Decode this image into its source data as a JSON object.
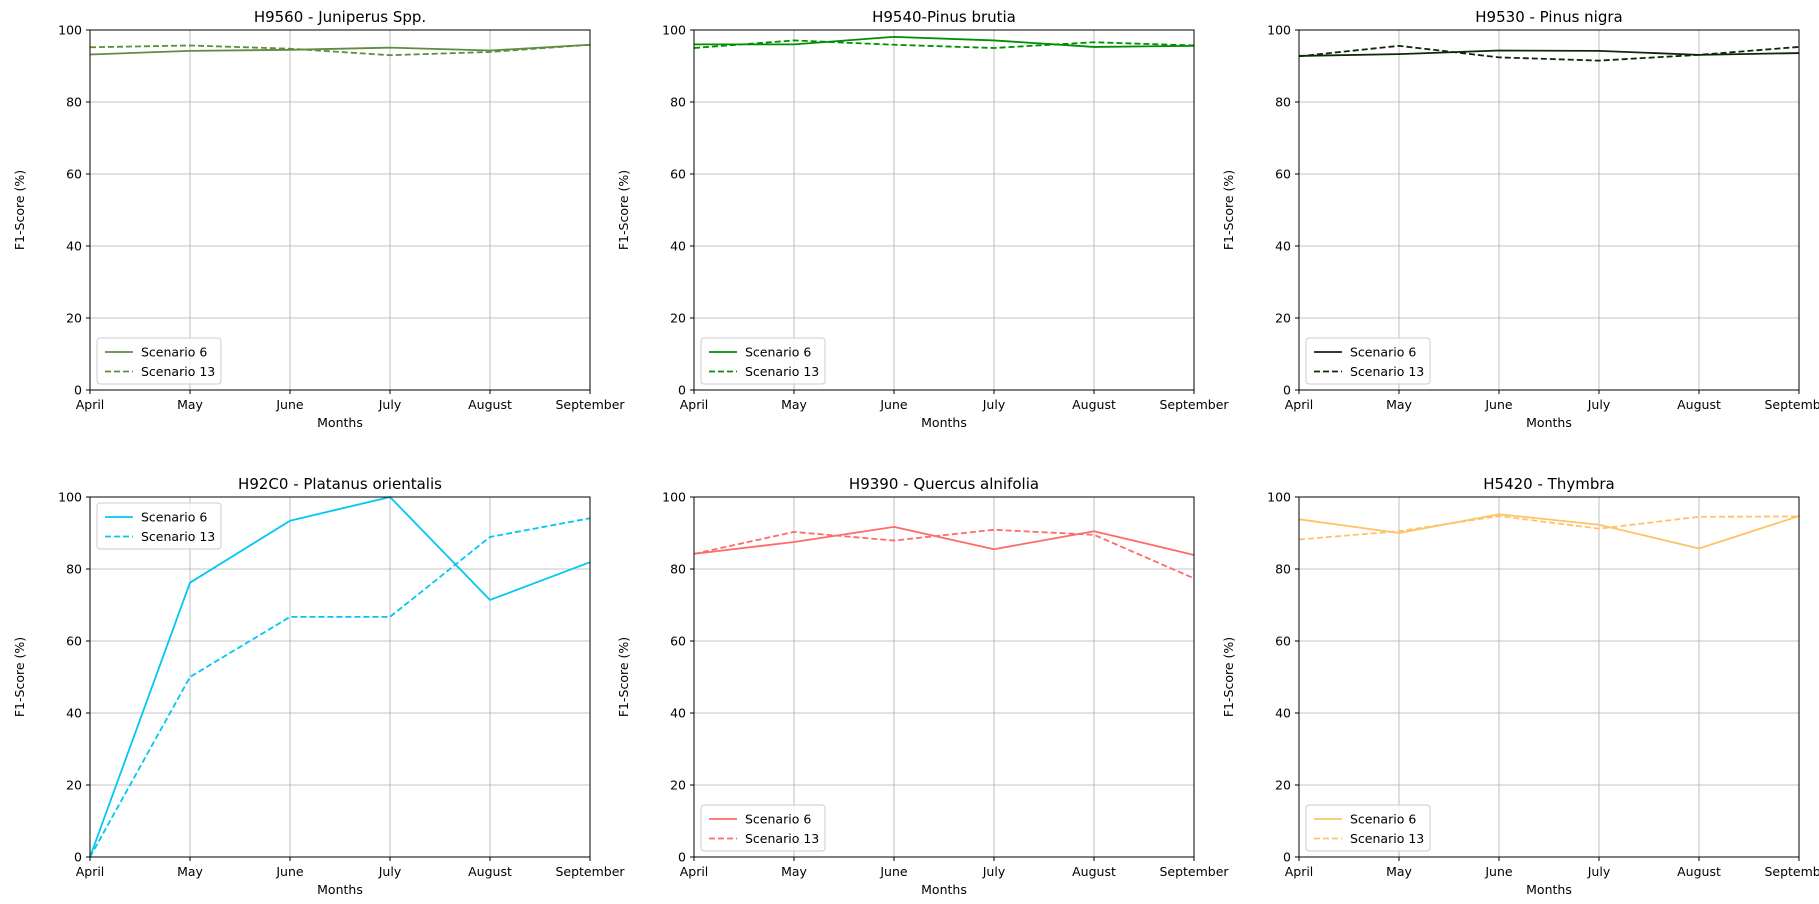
{
  "chart_data": [
    {
      "type": "line",
      "title": "H9560 - Juniperus Spp.",
      "xlabel": "Months",
      "ylabel": "F1-Score (%)",
      "categories": [
        "April",
        "May",
        "June",
        "July",
        "August",
        "September"
      ],
      "ylim": [
        0,
        100
      ],
      "yticks": [
        0,
        20,
        40,
        60,
        80,
        100
      ],
      "grid": true,
      "legend": "lower left",
      "color": "#5f8c3f",
      "series": [
        {
          "name": "Scenario 6",
          "style": "solid",
          "values": [
            93.2,
            94.2,
            94.5,
            95.1,
            94.3,
            95.9
          ]
        },
        {
          "name": "Scenario 13",
          "style": "dashed",
          "values": [
            95.2,
            95.7,
            94.8,
            93.0,
            93.9,
            95.9
          ]
        }
      ]
    },
    {
      "type": "line",
      "title": "H9540-Pinus brutia",
      "xlabel": "Months",
      "ylabel": "F1-Score (%)",
      "categories": [
        "April",
        "May",
        "June",
        "July",
        "August",
        "September"
      ],
      "ylim": [
        0,
        100
      ],
      "yticks": [
        0,
        20,
        40,
        60,
        80,
        100
      ],
      "grid": true,
      "legend": "lower left",
      "color": "#008f00",
      "series": [
        {
          "name": "Scenario 6",
          "style": "solid",
          "values": [
            96.0,
            96.0,
            98.1,
            97.1,
            95.3,
            95.6
          ]
        },
        {
          "name": "Scenario 13",
          "style": "dashed",
          "values": [
            95.0,
            97.1,
            95.9,
            95.0,
            96.6,
            95.7
          ]
        }
      ]
    },
    {
      "type": "line",
      "title": "H9530 - Pinus nigra",
      "xlabel": "Months",
      "ylabel": "F1-Score (%)",
      "categories": [
        "April",
        "May",
        "June",
        "July",
        "August",
        "September"
      ],
      "ylim": [
        0,
        100
      ],
      "yticks": [
        0,
        20,
        40,
        60,
        80,
        100
      ],
      "grid": true,
      "legend": "lower left",
      "color": "#0c2a06",
      "series": [
        {
          "name": "Scenario 6",
          "style": "solid",
          "values": [
            92.8,
            93.3,
            94.3,
            94.2,
            93.1,
            93.6
          ]
        },
        {
          "name": "Scenario 13",
          "style": "dashed",
          "values": [
            92.7,
            95.6,
            92.4,
            91.5,
            93.1,
            95.3
          ]
        }
      ]
    },
    {
      "type": "line",
      "title": "H92C0 - Platanus orientalis",
      "xlabel": "Months",
      "ylabel": "F1-Score (%)",
      "categories": [
        "April",
        "May",
        "June",
        "July",
        "August",
        "September"
      ],
      "ylim": [
        0,
        100
      ],
      "yticks": [
        0,
        20,
        40,
        60,
        80,
        100
      ],
      "grid": true,
      "legend": "upper left",
      "color": "#00c8f2",
      "series": [
        {
          "name": "Scenario 6",
          "style": "solid",
          "values": [
            0.0,
            76.2,
            93.4,
            100.0,
            71.4,
            81.9
          ]
        },
        {
          "name": "Scenario 13",
          "style": "dashed",
          "values": [
            0.0,
            50.0,
            66.7,
            66.7,
            88.9,
            94.1
          ]
        }
      ]
    },
    {
      "type": "line",
      "title": "H9390 - Quercus alnifolia",
      "xlabel": "Months",
      "ylabel": "F1-Score (%)",
      "categories": [
        "April",
        "May",
        "June",
        "July",
        "August",
        "September"
      ],
      "ylim": [
        0,
        100
      ],
      "yticks": [
        0,
        20,
        40,
        60,
        80,
        100
      ],
      "grid": true,
      "legend": "lower left",
      "color": "#ff6b6b",
      "series": [
        {
          "name": "Scenario 6",
          "style": "solid",
          "values": [
            84.2,
            87.5,
            91.7,
            85.5,
            90.5,
            83.9
          ]
        },
        {
          "name": "Scenario 13",
          "style": "dashed",
          "values": [
            84.2,
            90.3,
            87.9,
            90.9,
            89.5,
            77.4
          ]
        }
      ]
    },
    {
      "type": "line",
      "title": "H5420 - Thymbra",
      "xlabel": "Months",
      "ylabel": "F1-Score (%)",
      "categories": [
        "April",
        "May",
        "June",
        "July",
        "August",
        "September"
      ],
      "ylim": [
        0,
        100
      ],
      "yticks": [
        0,
        20,
        40,
        60,
        80,
        100
      ],
      "grid": true,
      "legend": "lower left",
      "color": "#ffc266",
      "series": [
        {
          "name": "Scenario 6",
          "style": "solid",
          "values": [
            93.8,
            90.0,
            95.2,
            92.3,
            85.7,
            94.7
          ]
        },
        {
          "name": "Scenario 13",
          "style": "dashed",
          "values": [
            88.2,
            90.5,
            94.7,
            91.2,
            94.5,
            94.6
          ]
        }
      ]
    }
  ]
}
